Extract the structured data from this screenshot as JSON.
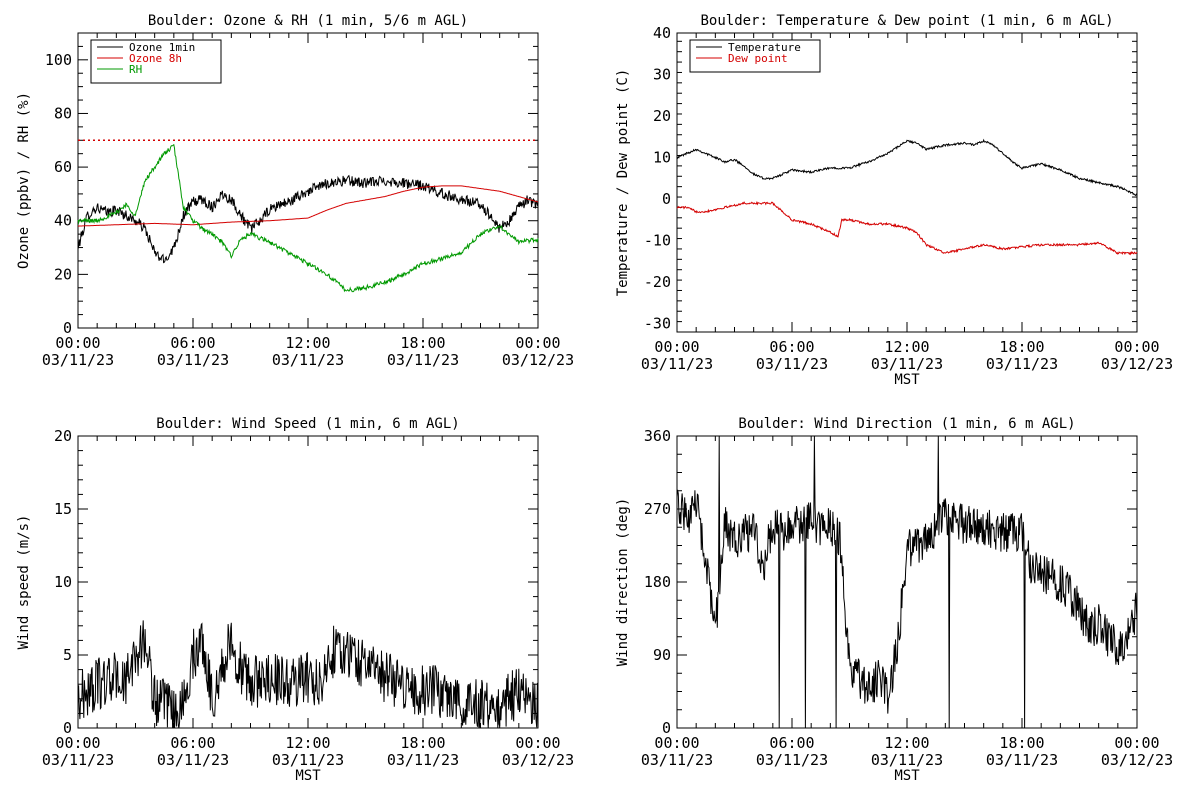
{
  "colors": {
    "axis": "#000000",
    "black": "#000000",
    "red": "#d40000",
    "green": "#009900"
  },
  "x_ticks": {
    "times": [
      "00:00",
      "06:00",
      "12:00",
      "18:00",
      "00:00"
    ],
    "dates": [
      "03/11/23",
      "03/11/23",
      "03/11/23",
      "03/11/23",
      "03/12/23"
    ]
  },
  "chart_data": [
    {
      "type": "line",
      "title": "Boulder: Ozone & RH (1 min, 5/6 m AGL)",
      "xlabel": "",
      "ylabel": "Ozone (ppbv) / RH (%)",
      "xlim": [
        0,
        24
      ],
      "ylim": [
        0,
        110
      ],
      "yticks": [
        0,
        20,
        40,
        60,
        80,
        100
      ],
      "yminor": 5,
      "legend": "top-left",
      "reference_lines": [
        {
          "y": 70,
          "color": "#d40000",
          "style": "dotted"
        }
      ],
      "series": [
        {
          "name": "Ozone 1min",
          "color": "#000000",
          "noise": 2.0,
          "x": [
            0,
            0.5,
            1,
            1.5,
            2,
            2.5,
            3,
            3.5,
            4,
            4.5,
            5,
            5.5,
            6,
            6.5,
            7,
            7.5,
            8,
            8.5,
            9,
            9.5,
            10,
            10.5,
            11,
            11.5,
            12,
            13,
            14,
            15,
            16,
            17,
            18,
            19,
            20,
            21,
            21.5,
            22,
            22.5,
            23,
            23.5,
            24
          ],
          "y": [
            30,
            42,
            45,
            43,
            44,
            42,
            40,
            37,
            28,
            25,
            30,
            42,
            47,
            48,
            45,
            50,
            48,
            42,
            37,
            40,
            44,
            46,
            47,
            49,
            51,
            54,
            55,
            54,
            55,
            54,
            53,
            50,
            48,
            46,
            42,
            37,
            40,
            45,
            48,
            45
          ]
        },
        {
          "name": "Ozone 8h",
          "color": "#d40000",
          "noise": 0,
          "x": [
            0,
            2,
            4,
            6,
            8,
            10,
            12,
            13,
            14,
            16,
            17,
            18,
            19,
            20,
            22,
            24
          ],
          "y": [
            38,
            38.5,
            39,
            38.5,
            39.5,
            40,
            41,
            44,
            46.5,
            49,
            51,
            52.5,
            53,
            53,
            51,
            47
          ]
        },
        {
          "name": "RH",
          "color": "#009900",
          "noise": 0.8,
          "x": [
            0,
            1,
            2,
            2.5,
            3,
            3.5,
            4,
            4.5,
            5,
            5.5,
            6,
            6.5,
            7,
            7.5,
            8,
            8.5,
            9,
            10,
            11,
            12,
            13,
            14,
            15,
            16,
            17,
            18,
            19,
            20,
            21,
            22,
            23,
            24
          ],
          "y": [
            40,
            40,
            43,
            46,
            42,
            55,
            60,
            65,
            68,
            45,
            40,
            37,
            35,
            32,
            27,
            33,
            35,
            32,
            28,
            24,
            20,
            14,
            15,
            17,
            20,
            24,
            26,
            28,
            35,
            38,
            32,
            33
          ]
        }
      ]
    },
    {
      "type": "line",
      "title": "Boulder: Temperature & Dew point (1 min, 6 m AGL)",
      "xlabel": "MST",
      "ylabel": "Temperature / Dew point (C)",
      "xlim": [
        0,
        24
      ],
      "ylim": [
        -32,
        40
      ],
      "yticks": [
        -30,
        -20,
        -10,
        0,
        10,
        20,
        30,
        40
      ],
      "yminor": 2.5,
      "legend": "top-left",
      "series": [
        {
          "name": "Temperature",
          "color": "#000000",
          "noise": 0.25,
          "x": [
            0,
            0.5,
            1,
            1.5,
            2,
            2.5,
            3,
            3.5,
            4,
            4.5,
            5,
            5.5,
            6,
            7,
            8,
            9,
            10,
            11,
            12,
            12.5,
            13,
            14,
            15,
            15.5,
            16,
            16.5,
            17,
            17.5,
            18,
            19,
            20,
            21,
            22,
            23,
            24
          ],
          "y": [
            10,
            11,
            12,
            11,
            10,
            9,
            9.5,
            8,
            6,
            5,
            5,
            6,
            7,
            6.5,
            7.5,
            7.5,
            9,
            11,
            14,
            13.5,
            12,
            13,
            13.5,
            13,
            14,
            13,
            11,
            9,
            7.5,
            8.5,
            7,
            5,
            4,
            3,
            1
          ]
        },
        {
          "name": "Dew point",
          "color": "#d40000",
          "noise": 0.25,
          "x": [
            0,
            0.5,
            1,
            1.5,
            2,
            2.5,
            3,
            3.5,
            4,
            4.5,
            5,
            5.5,
            6,
            7,
            8,
            8.4,
            8.6,
            9,
            10,
            11,
            12,
            12.5,
            13,
            14,
            15,
            16,
            17,
            18,
            19,
            20,
            21,
            22,
            23,
            24
          ],
          "y": [
            -2,
            -2,
            -3,
            -3,
            -2.5,
            -2,
            -1.5,
            -1,
            -1,
            -1,
            -1,
            -3,
            -5,
            -6,
            -8,
            -9,
            -5,
            -5,
            -6,
            -6,
            -7,
            -8,
            -11,
            -13,
            -12,
            -11,
            -12,
            -11.5,
            -11,
            -11,
            -11,
            -10.5,
            -13,
            -13
          ]
        }
      ]
    },
    {
      "type": "line",
      "title": "Boulder: Wind Speed (1 min, 6 m AGL)",
      "xlabel": "MST",
      "ylabel": "Wind speed (m/s)",
      "xlim": [
        0,
        24
      ],
      "ylim": [
        0,
        20
      ],
      "yticks": [
        0,
        5,
        10,
        15,
        20
      ],
      "yminor": 1,
      "legend": "none",
      "series": [
        {
          "color": "#000000",
          "noise": 1.8,
          "floor": 0,
          "x": [
            0,
            1,
            2,
            2.5,
            3,
            3.5,
            4,
            4.5,
            5,
            5.5,
            6,
            6.5,
            7,
            7.5,
            8,
            8.5,
            9,
            10,
            11,
            12,
            12.5,
            13,
            13.5,
            14,
            15,
            16,
            17,
            18,
            19,
            20,
            21,
            22,
            23,
            24
          ],
          "y": [
            2,
            3,
            3.5,
            3,
            5,
            6,
            2,
            1.5,
            1,
            1.5,
            5,
            6,
            2,
            4,
            6,
            4,
            3,
            3.5,
            3,
            3.5,
            3,
            4,
            6,
            5,
            4.5,
            3.5,
            3,
            2.5,
            2.5,
            2,
            1.5,
            1.5,
            2.5,
            1.5
          ]
        }
      ]
    },
    {
      "type": "line",
      "title": "Boulder: Wind Direction (1 min, 6 m AGL)",
      "xlabel": "MST",
      "ylabel": "Wind direction (deg)",
      "xlim": [
        0,
        24
      ],
      "ylim": [
        0,
        360
      ],
      "yticks": [
        0,
        90,
        180,
        270,
        360
      ],
      "yminor": 22.5,
      "legend": "none",
      "series": [
        {
          "color": "#000000",
          "noise": 25,
          "floor": 0,
          "ceil": 360,
          "spikes": true,
          "x": [
            0,
            0.5,
            1,
            1.5,
            2,
            2.5,
            3,
            3.5,
            4,
            4.5,
            5,
            5.5,
            6,
            6.5,
            7,
            7.5,
            8,
            8.5,
            9,
            9.5,
            10,
            10.5,
            11,
            11.5,
            12,
            13,
            14,
            15,
            16,
            17,
            18,
            18.5,
            19,
            20,
            21,
            21.5,
            22,
            22.5,
            23,
            23.5,
            24
          ],
          "y": [
            270,
            260,
            280,
            200,
            120,
            250,
            230,
            240,
            240,
            200,
            250,
            240,
            250,
            250,
            260,
            240,
            250,
            230,
            80,
            60,
            50,
            60,
            40,
            100,
            220,
            230,
            260,
            250,
            250,
            240,
            240,
            200,
            190,
            180,
            150,
            120,
            130,
            110,
            100,
            110,
            150
          ]
        }
      ]
    }
  ]
}
